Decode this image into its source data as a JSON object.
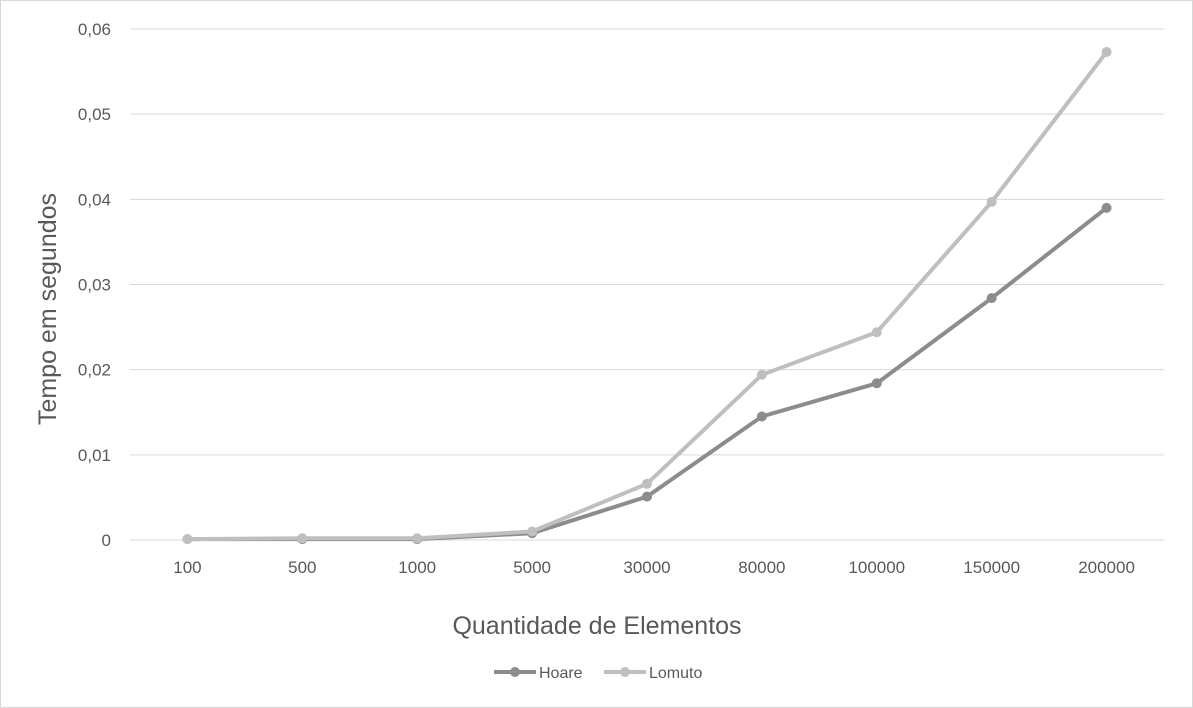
{
  "chart_data": {
    "type": "line",
    "title": "",
    "xlabel": "Quantidade de Elementos",
    "ylabel": "Tempo em segundos",
    "categories": [
      "100",
      "500",
      "1000",
      "5000",
      "30000",
      "80000",
      "100000",
      "150000",
      "200000"
    ],
    "y_tick_labels": [
      "0",
      "0,01",
      "0,02",
      "0,03",
      "0,04",
      "0,05",
      "0,06"
    ],
    "y_ticks": [
      0,
      0.01,
      0.02,
      0.03,
      0.04,
      0.05,
      0.06
    ],
    "ylim": [
      0,
      0.06
    ],
    "grid": true,
    "legend_position": "bottom",
    "series": [
      {
        "name": "Hoare",
        "color": "#8c8c8c",
        "values": [
          0.0001,
          0.0001,
          0.0001,
          0.0008,
          0.0051,
          0.0145,
          0.0184,
          0.0284,
          0.039
        ]
      },
      {
        "name": "Lomuto",
        "color": "#bfbfbf",
        "values": [
          0.0001,
          0.0002,
          0.0002,
          0.001,
          0.0066,
          0.0194,
          0.0244,
          0.0397,
          0.0573
        ]
      }
    ]
  }
}
